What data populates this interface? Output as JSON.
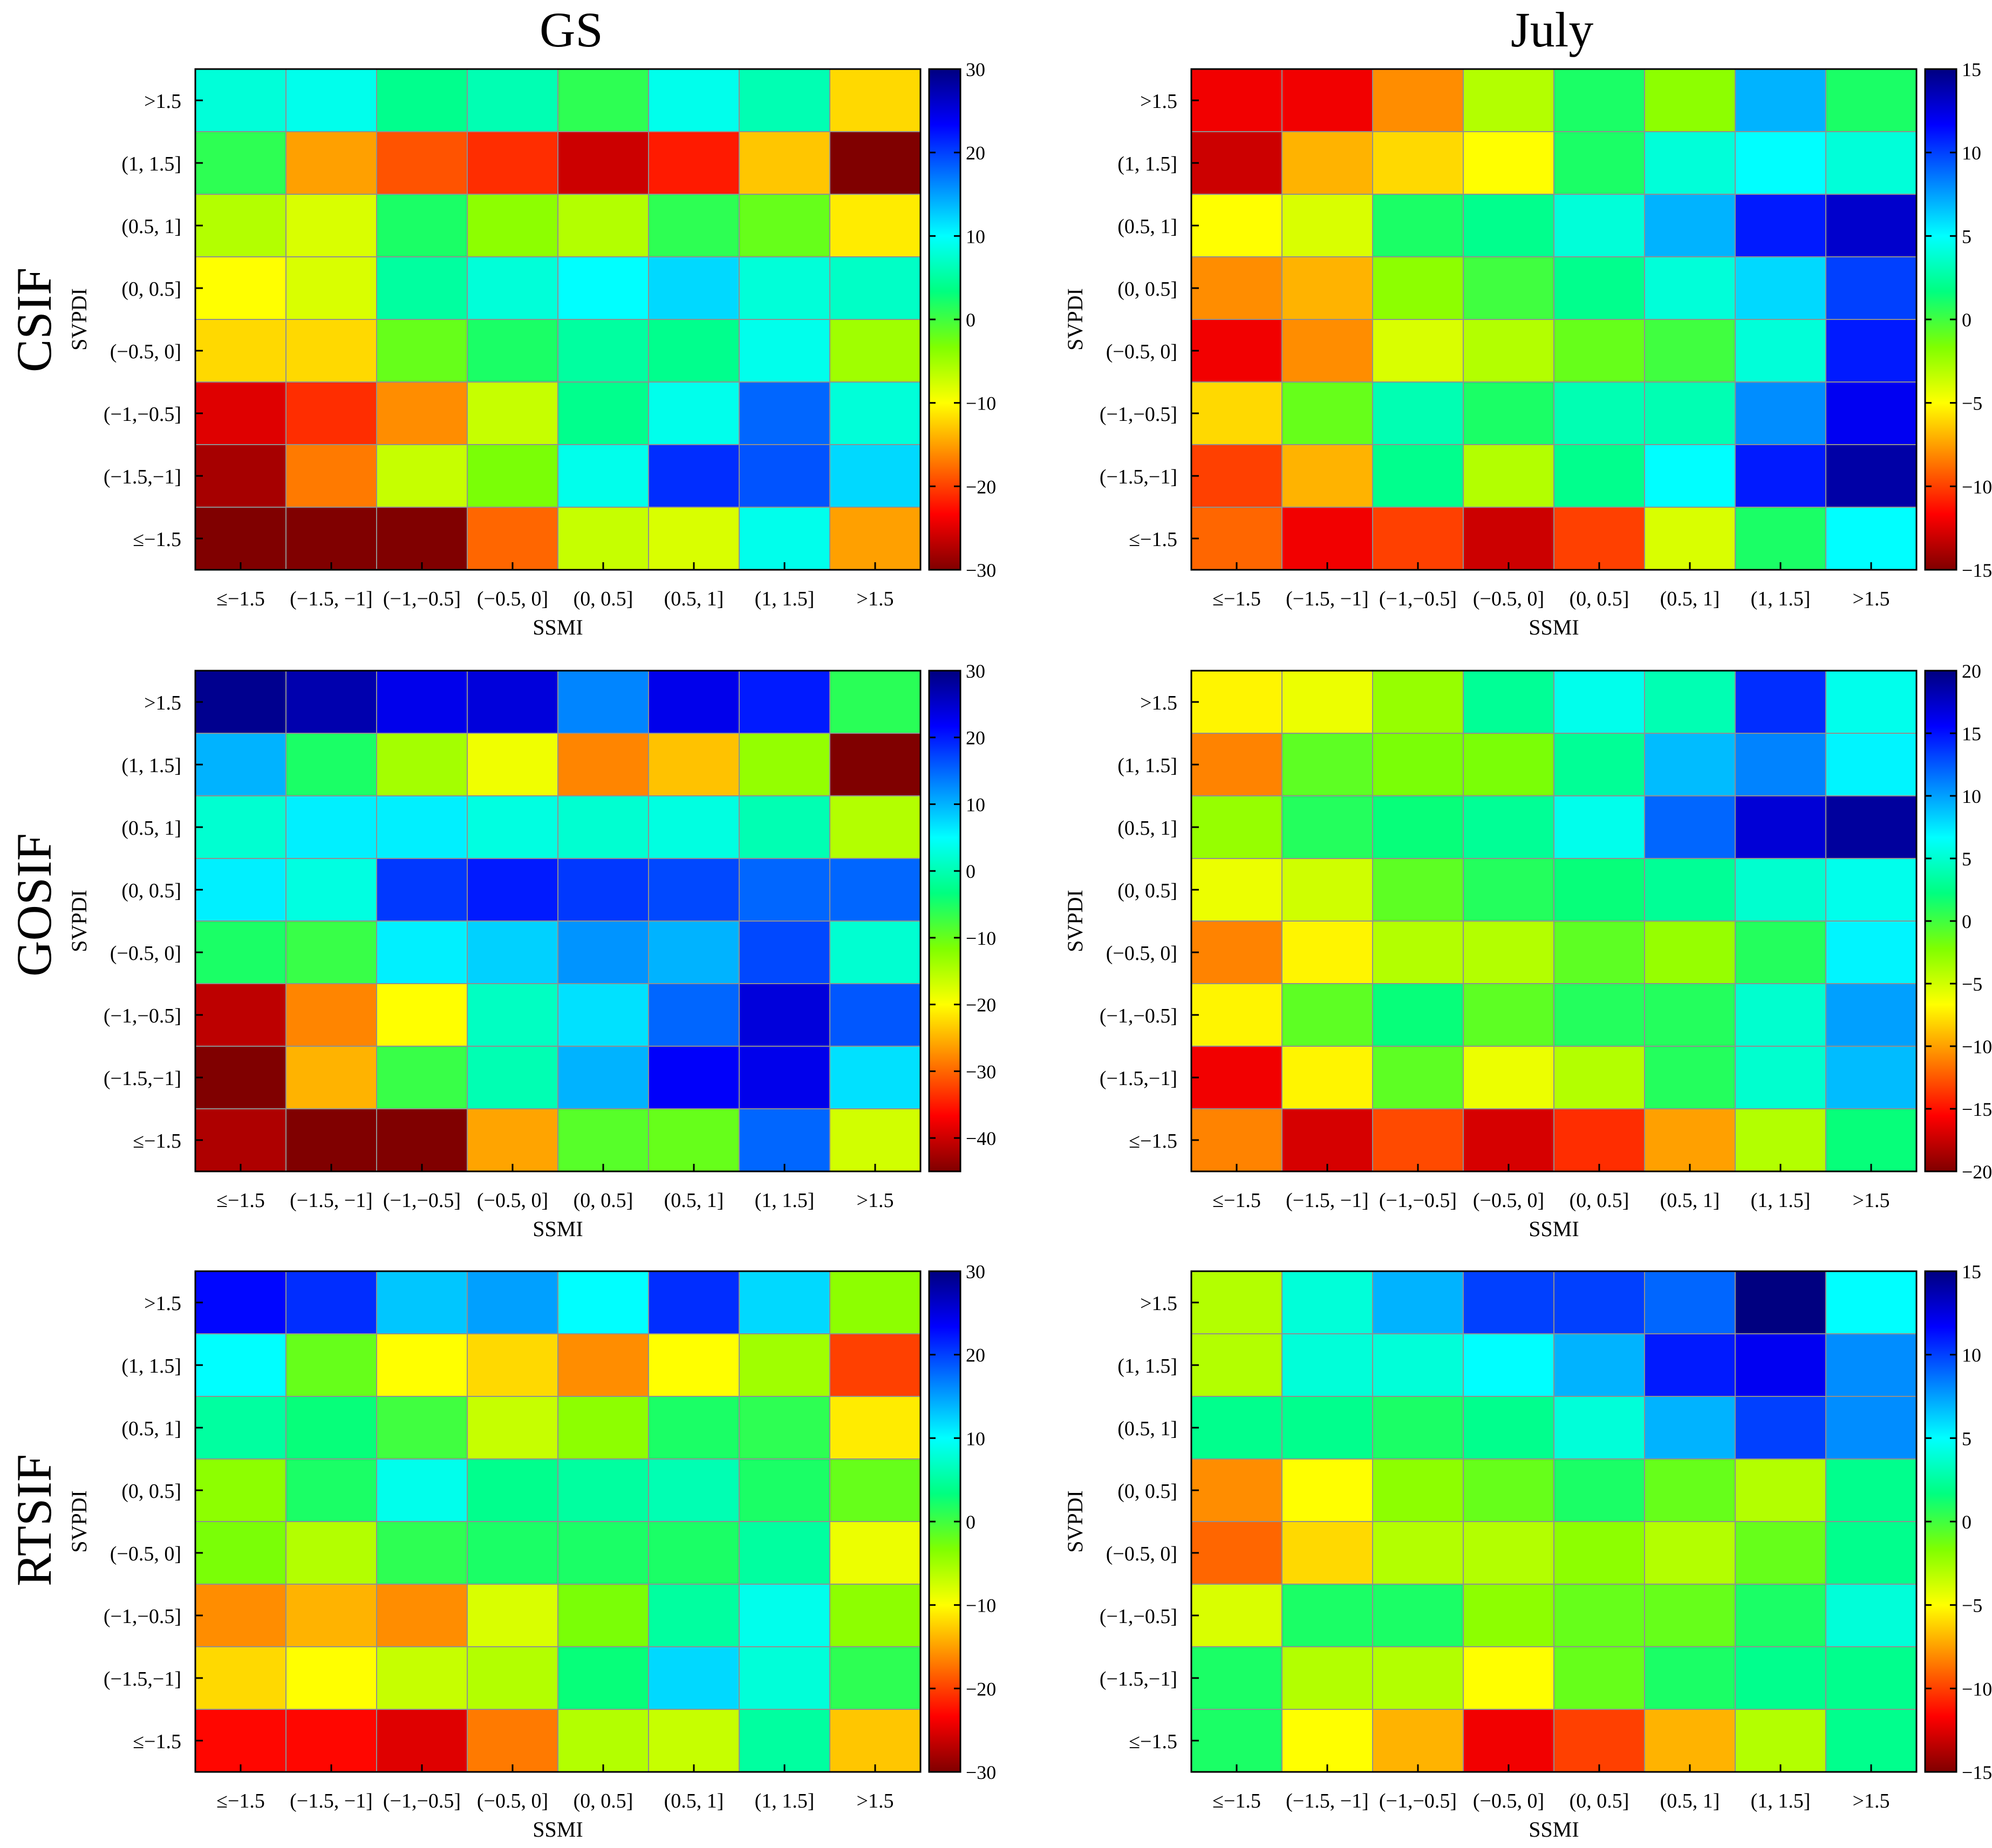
{
  "figure": {
    "column_titles": [
      "GS",
      "July"
    ],
    "row_titles": [
      "CSIF",
      "GOSIF",
      "RTSIF"
    ]
  },
  "colormap": {
    "name": "jet",
    "stops": [
      "#800000",
      "#ff0000",
      "#ff8000",
      "#ffff00",
      "#80ff00",
      "#00ff80",
      "#00ffff",
      "#0080ff",
      "#0000ff",
      "#000080"
    ]
  },
  "chart_data": [
    {
      "type": "heatmap",
      "panel": "CSIF-GS",
      "xlabel": "SSMI",
      "ylabel": "SVPDI",
      "x_categories": [
        "≤−1.5",
        "(−1.5, −1]",
        "(−1,−0.5]",
        "(−0.5, 0]",
        "(0, 0.5]",
        "(0.5, 1]",
        "(1, 1.5]",
        ">1.5"
      ],
      "y_categories": [
        ">1.5",
        "(1, 1.5]",
        "(0.5, 1]",
        "(0, 0.5]",
        "(−0.5, 0]",
        "(−1,−0.5]",
        "(−1.5,−1]",
        "≤−1.5"
      ],
      "clim": [
        -30,
        30
      ],
      "colorbar_ticks": [
        "30",
        "20",
        "10",
        "0",
        "−10",
        "−20",
        "−30"
      ],
      "values": [
        [
          8,
          9,
          4,
          6,
          1,
          9,
          6,
          -12
        ],
        [
          1,
          -15,
          -19,
          -21,
          -26,
          -22,
          -13,
          -30
        ],
        [
          -6,
          -8,
          2,
          -4,
          -6,
          1,
          -2,
          -11
        ],
        [
          -10,
          -8,
          5,
          8,
          10,
          12,
          8,
          7
        ],
        [
          -12,
          -12,
          -2,
          2,
          5,
          4,
          9,
          -5
        ],
        [
          -25,
          -21,
          -16,
          -7,
          4,
          9,
          18,
          8
        ],
        [
          -28,
          -17,
          -7,
          -3,
          9,
          21,
          19,
          12
        ],
        [
          -30,
          -30,
          -30,
          -18,
          -7,
          -8,
          9,
          -15
        ]
      ]
    },
    {
      "type": "heatmap",
      "panel": "CSIF-July",
      "xlabel": "SSMI",
      "ylabel": "SVPDI",
      "x_categories": [
        "≤−1.5",
        "(−1.5, −1]",
        "(−1,−0.5]",
        "(−0.5, 0]",
        "(0, 0.5]",
        "(0.5, 1]",
        "(1, 1.5]",
        ">1.5"
      ],
      "y_categories": [
        ">1.5",
        "(1, 1.5]",
        "(0.5, 1]",
        "(0, 0.5]",
        "(−0.5, 0]",
        "(−1,−0.5]",
        "(−1.5,−1]",
        "≤−1.5"
      ],
      "clim": [
        -15,
        15
      ],
      "colorbar_ticks": [
        "15",
        "10",
        "5",
        "0",
        "−5",
        "−10",
        "−15"
      ],
      "values": [
        [
          -12,
          -12,
          -8,
          -3,
          1,
          -2,
          7,
          1
        ],
        [
          -13,
          -7,
          -6,
          -5,
          1,
          4,
          5,
          4
        ],
        [
          -5,
          -4,
          1,
          2,
          4,
          7,
          11,
          13
        ],
        [
          -8,
          -7,
          -2,
          0,
          2,
          4,
          6,
          10
        ],
        [
          -12,
          -8,
          -4,
          -3,
          -1,
          0,
          4,
          11
        ],
        [
          -6,
          -1,
          3,
          1,
          3,
          3,
          8,
          12
        ],
        [
          -10,
          -7,
          2,
          -3,
          2,
          5,
          11,
          14
        ],
        [
          -9,
          -12,
          -10,
          -13,
          -10,
          -4,
          1,
          5
        ]
      ]
    },
    {
      "type": "heatmap",
      "panel": "GOSIF-GS",
      "xlabel": "SSMI",
      "ylabel": "SVPDI",
      "x_categories": [
        "≤−1.5",
        "(−1.5, −1]",
        "(−1,−0.5]",
        "(−0.5, 0]",
        "(0, 0.5]",
        "(0.5, 1]",
        "(1, 1.5]",
        ">1.5"
      ],
      "y_categories": [
        ">1.5",
        "(1, 1.5]",
        "(0.5, 1]",
        "(0, 0.5]",
        "(−0.5, 0]",
        "(−1,−0.5]",
        "(−1.5,−1]",
        "≤−1.5"
      ],
      "clim": [
        -45,
        30
      ],
      "colorbar_ticks": [
        "30",
        "20",
        "10",
        "0",
        "−10",
        "−20",
        "−30",
        "−40"
      ],
      "values": [
        [
          29,
          27,
          23,
          24,
          13,
          23,
          20,
          -6
        ],
        [
          10,
          -5,
          -14,
          -19,
          -28,
          -24,
          -13,
          -45
        ],
        [
          2,
          6,
          6,
          3,
          2,
          3,
          0,
          -15
        ],
        [
          6,
          3,
          18,
          20,
          18,
          17,
          15,
          15
        ],
        [
          -5,
          -7,
          6,
          8,
          12,
          10,
          17,
          2
        ],
        [
          -41,
          -28,
          -20,
          1,
          7,
          15,
          24,
          16
        ],
        [
          -45,
          -25,
          -7,
          0,
          10,
          22,
          23,
          7
        ],
        [
          -42,
          -45,
          -45,
          -26,
          -9,
          -10,
          15,
          -17
        ]
      ]
    },
    {
      "type": "heatmap",
      "panel": "GOSIF-July",
      "xlabel": "SSMI",
      "ylabel": "SVPDI",
      "x_categories": [
        "≤−1.5",
        "(−1.5, −1]",
        "(−1,−0.5]",
        "(−0.5, 0]",
        "(0, 0.5]",
        "(0.5, 1]",
        "(1, 1.5]",
        ">1.5"
      ],
      "y_categories": [
        ">1.5",
        "(1, 1.5]",
        "(0.5, 1]",
        "(0, 0.5]",
        "(−0.5, 0]",
        "(−1,−0.5]",
        "(−1.5,−1]",
        "≤−1.5"
      ],
      "clim": [
        -20,
        20
      ],
      "colorbar_ticks": [
        "20",
        "15",
        "10",
        "5",
        "0",
        "−5",
        "−10",
        "−15",
        "−20"
      ],
      "values": [
        [
          -7,
          -6,
          -3,
          3,
          6,
          4,
          14,
          6
        ],
        [
          -11,
          -1,
          -2,
          -2,
          3,
          9,
          11,
          7
        ],
        [
          -3,
          1,
          2,
          3,
          6,
          12,
          17,
          19
        ],
        [
          -6,
          -5,
          -1,
          1,
          2,
          3,
          5,
          6
        ],
        [
          -11,
          -7,
          -4,
          -4,
          -1,
          -3,
          1,
          7
        ],
        [
          -7,
          -1,
          2,
          -1,
          1,
          1,
          5,
          10
        ],
        [
          -16,
          -7,
          -1,
          -6,
          -4,
          1,
          5,
          9
        ],
        [
          -11,
          -17,
          -13,
          -17,
          -14,
          -10,
          -4,
          2
        ]
      ]
    },
    {
      "type": "heatmap",
      "panel": "RTSIF-GS",
      "xlabel": "SSMI",
      "ylabel": "SVPDI",
      "x_categories": [
        "≤−1.5",
        "(−1.5, −1]",
        "(−1,−0.5]",
        "(−0.5, 0]",
        "(0, 0.5]",
        "(0.5, 1]",
        "(1, 1.5]",
        ">1.5"
      ],
      "y_categories": [
        ">1.5",
        "(1, 1.5]",
        "(0.5, 1]",
        "(0, 0.5]",
        "(−0.5, 0]",
        "(−1,−0.5]",
        "(−1.5,−1]",
        "≤−1.5"
      ],
      "clim": [
        -30,
        30
      ],
      "colorbar_ticks": [
        "30",
        "20",
        "10",
        "0",
        "−10",
        "−20",
        "−30"
      ],
      "values": [
        [
          23,
          21,
          13,
          15,
          10,
          21,
          12,
          -4
        ],
        [
          10,
          -2,
          -10,
          -12,
          -16,
          -10,
          -5,
          -20
        ],
        [
          5,
          3,
          0,
          -7,
          -4,
          2,
          1,
          -11
        ],
        [
          -4,
          2,
          9,
          4,
          5,
          6,
          2,
          -2
        ],
        [
          -3,
          -6,
          1,
          2,
          2,
          2,
          5,
          -9
        ],
        [
          -16,
          -14,
          -16,
          -8,
          -3,
          5,
          9,
          -4
        ],
        [
          -12,
          -10,
          -7,
          -6,
          3,
          12,
          8,
          1
        ],
        [
          -23,
          -23,
          -25,
          -17,
          -6,
          -7,
          5,
          -13
        ]
      ]
    },
    {
      "type": "heatmap",
      "panel": "RTSIF-July",
      "xlabel": "SSMI",
      "ylabel": "SVPDI",
      "x_categories": [
        "≤−1.5",
        "(−1.5, −1]",
        "(−1,−0.5]",
        "(−0.5, 0]",
        "(0, 0.5]",
        "(0.5, 1]",
        "(1, 1.5]",
        ">1.5"
      ],
      "y_categories": [
        ">1.5",
        "(1, 1.5]",
        "(0.5, 1]",
        "(0, 0.5]",
        "(−0.5, 0]",
        "(−1,−0.5]",
        "(−1.5,−1]",
        "≤−1.5"
      ],
      "clim": [
        -15,
        15
      ],
      "colorbar_ticks": [
        "15",
        "10",
        "5",
        "0",
        "−5",
        "−10",
        "−15"
      ],
      "values": [
        [
          -3,
          4,
          7,
          10,
          10,
          9,
          15,
          5
        ],
        [
          -3,
          4,
          4,
          5,
          7,
          11,
          12,
          8
        ],
        [
          2,
          2,
          1,
          2,
          4,
          7,
          10,
          8
        ],
        [
          -8,
          -5,
          -2,
          -1,
          1,
          -1,
          -3,
          2
        ],
        [
          -9,
          -6,
          -3,
          -3,
          -2,
          -3,
          -1,
          2
        ],
        [
          -4,
          1,
          1,
          -2,
          -1,
          -1,
          1,
          4
        ],
        [
          1,
          -3,
          -3,
          -5,
          -1,
          1,
          2,
          2
        ],
        [
          1,
          -5,
          -7,
          -12,
          -10,
          -7,
          -3,
          2
        ]
      ]
    }
  ]
}
